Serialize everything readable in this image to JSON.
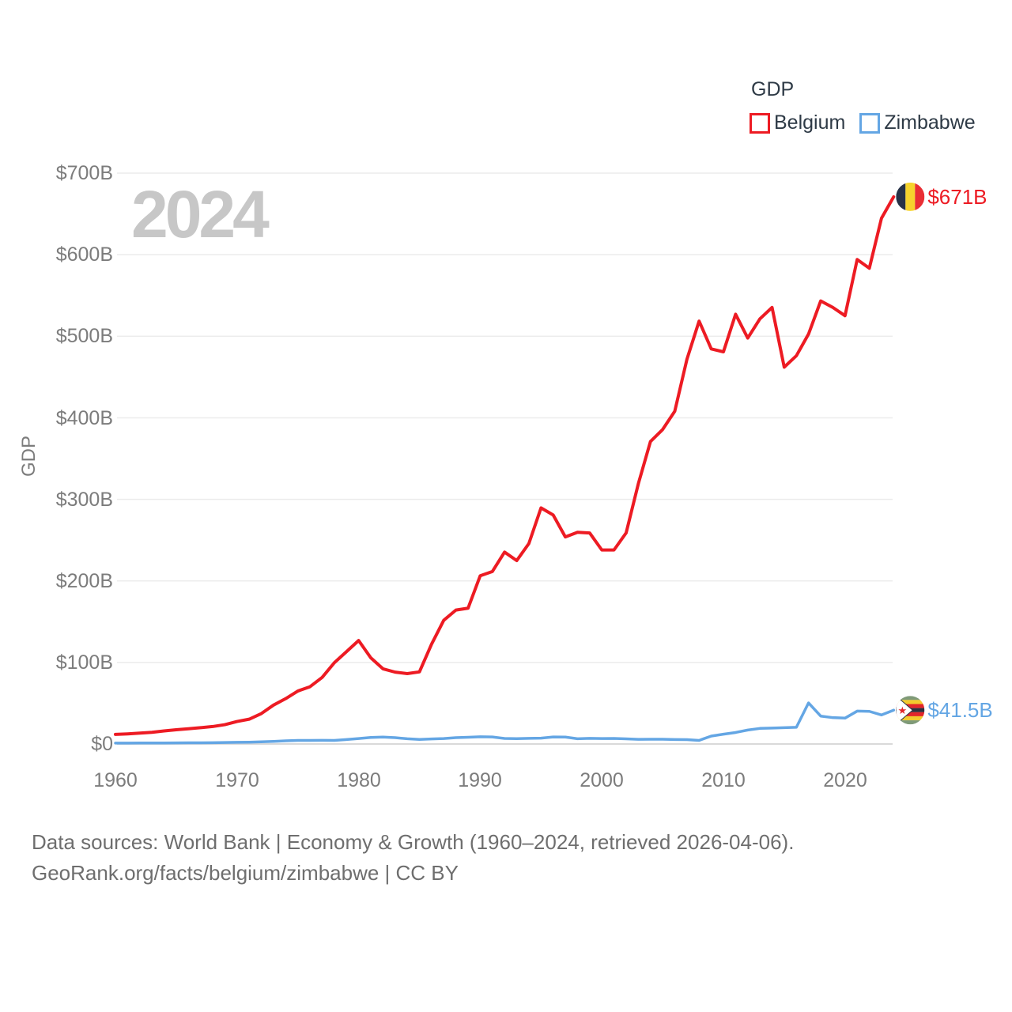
{
  "legend": {
    "title": "GDP",
    "series": [
      {
        "label": "Belgium"
      },
      {
        "label": "Zimbabwe"
      }
    ]
  },
  "watermark": "2024",
  "y_axis": {
    "title": "GDP",
    "ticks": [
      "$700B",
      "$600B",
      "$500B",
      "$400B",
      "$300B",
      "$200B",
      "$100B",
      "$0"
    ]
  },
  "x_axis": {
    "ticks": [
      "1960",
      "1970",
      "1980",
      "1990",
      "2000",
      "2010",
      "2020"
    ]
  },
  "footer": {
    "line1": "Data sources: World Bank | Economy & Growth (1960–2024, retrieved 2026-04-06).",
    "line2": "GeoRank.org/facts/belgium/zimbabwe | CC BY"
  },
  "chart_data": {
    "type": "line",
    "title": "GDP",
    "ylabel": "GDP",
    "ylim": [
      0,
      700
    ],
    "grid": true,
    "legend_position": "top-right",
    "y_ticks_billions": [
      700,
      600,
      500,
      400,
      300,
      200,
      100,
      0
    ],
    "x_ticks": [
      1960,
      1970,
      1980,
      1990,
      2000,
      2010,
      2020
    ],
    "x": [
      1960,
      1961,
      1962,
      1963,
      1964,
      1965,
      1966,
      1967,
      1968,
      1969,
      1970,
      1971,
      1972,
      1973,
      1974,
      1975,
      1976,
      1977,
      1978,
      1979,
      1980,
      1981,
      1982,
      1983,
      1984,
      1985,
      1986,
      1987,
      1988,
      1989,
      1990,
      1991,
      1992,
      1993,
      1994,
      1995,
      1996,
      1997,
      1998,
      1999,
      2000,
      2001,
      2002,
      2003,
      2004,
      2005,
      2006,
      2007,
      2008,
      2009,
      2010,
      2011,
      2012,
      2013,
      2014,
      2015,
      2016,
      2017,
      2018,
      2019,
      2020,
      2021,
      2022,
      2023,
      2024
    ],
    "series": [
      {
        "name": "Belgium",
        "color": "#ed1b23",
        "values": [
          11.7,
          12.4,
          13.3,
          14.3,
          16.0,
          17.4,
          18.7,
          20.0,
          21.4,
          23.7,
          27.6,
          30.4,
          37.3,
          47.7,
          55.6,
          64.9,
          70.2,
          81.6,
          99.6,
          113.2,
          126.9,
          105.7,
          92.2,
          88.1,
          86.3,
          88.4,
          122.5,
          151.7,
          164.2,
          166.5,
          206.3,
          211.5,
          235.3,
          224.9,
          245.8,
          289.5,
          280.8,
          253.9,
          259.6,
          258.8,
          237.9,
          237.9,
          258.9,
          319.0,
          370.9,
          385.6,
          408.1,
          471.8,
          518.6,
          484.5,
          480.9,
          527.0,
          497.8,
          521.3,
          535.3,
          462.1,
          476.1,
          502.7,
          543.3,
          535.3,
          525.2,
          594.1,
          583.4,
          644.8,
          671.0
        ]
      },
      {
        "name": "Zimbabwe",
        "color": "#64a6e4",
        "values": [
          1.1,
          1.1,
          1.2,
          1.2,
          1.2,
          1.3,
          1.4,
          1.5,
          1.6,
          1.8,
          2.0,
          2.2,
          2.7,
          3.2,
          3.9,
          4.4,
          4.4,
          4.5,
          4.4,
          5.4,
          6.7,
          8.0,
          8.5,
          7.8,
          6.4,
          5.6,
          6.2,
          6.7,
          7.8,
          8.3,
          8.8,
          8.6,
          6.8,
          6.6,
          6.9,
          7.1,
          8.6,
          8.5,
          6.4,
          6.9,
          6.7,
          6.8,
          6.3,
          5.7,
          5.8,
          5.8,
          5.4,
          5.3,
          4.4,
          9.7,
          12.0,
          14.1,
          17.1,
          19.1,
          19.5,
          20.0,
          20.5,
          50.4,
          34.2,
          32.3,
          31.7,
          40.3,
          40.0,
          35.6,
          41.5
        ]
      }
    ],
    "end_labels": {
      "belgium": "$671B",
      "zimbabwe": "$41.5B"
    }
  }
}
